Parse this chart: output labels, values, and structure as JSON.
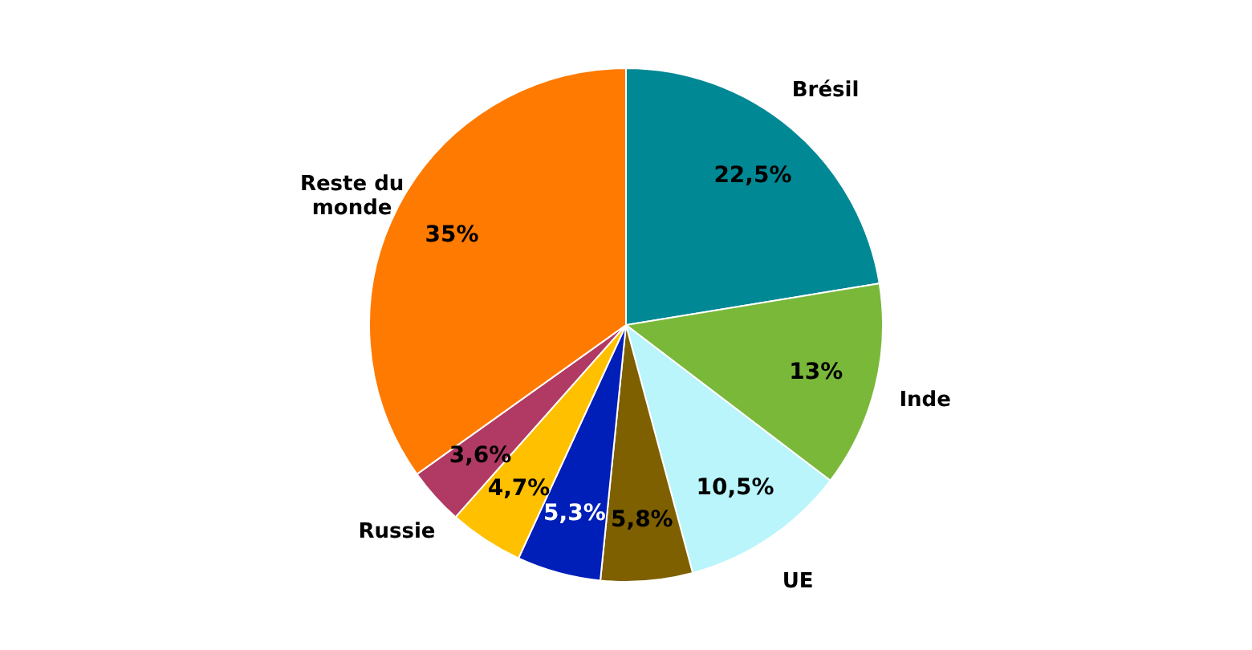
{
  "chart_data": {
    "type": "pie",
    "categories": [
      "Brésil",
      "Inde",
      "UE",
      null,
      null,
      null,
      "Russie",
      "Reste du monde"
    ],
    "values": [
      22.5,
      13,
      10.5,
      5.8,
      5.3,
      4.7,
      3.6,
      35
    ],
    "colors": [
      "#008894",
      "#7ab83a",
      "#b9f5fb",
      "#7f6000",
      "#001eb8",
      "#ffc000",
      "#b03a63",
      "#ff7a00"
    ],
    "value_labels": [
      "22,5%",
      "13%",
      "10,5%",
      "5,8%",
      "5,3%",
      "4,7%",
      "3,6%",
      "35%"
    ]
  }
}
